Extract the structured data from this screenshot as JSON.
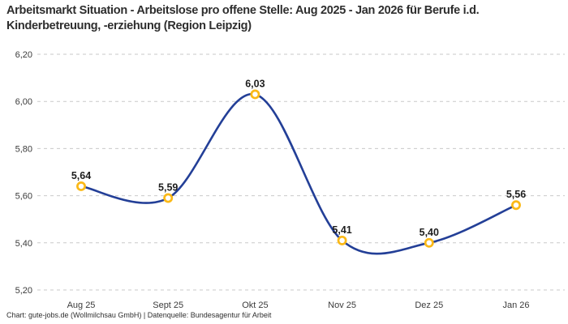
{
  "page": {
    "title": "Arbeitsmarkt Situation - Arbeitslose pro offene Stelle: Aug 2025 - Jan 2026 für Berufe i.d. Kinderbetreuung, -erziehung (Region Leipzig)",
    "footer": "Chart: gute-jobs.de (Wollmilchsau GmbH) | Datenquelle: Bundesagentur für Arbeit"
  },
  "colors": {
    "line": "#233f97",
    "marker_ring": "#fbb917",
    "marker_fill": "#ffffff",
    "gridline": "#c9c9c9",
    "title_text": "#2e2e2e",
    "axis_text": "#3b3b3b",
    "label_text": "#1d1d1d"
  },
  "chart_data": {
    "type": "line",
    "title": "Arbeitsmarkt Situation - Arbeitslose pro offene Stelle: Aug 2025 - Jan 2026 für Berufe i.d. Kinderbetreuung, -erziehung (Region Leipzig)",
    "categories": [
      "Aug 25",
      "Sept 25",
      "Okt 25",
      "Nov 25",
      "Dez 25",
      "Jan 26"
    ],
    "values": [
      5.64,
      5.59,
      6.03,
      5.41,
      5.4,
      5.56
    ],
    "value_labels": [
      "5,64",
      "5,59",
      "6,03",
      "5,41",
      "5,40",
      "5,56"
    ],
    "series_name": "Arbeitslose pro offene Stelle",
    "xlabel": "",
    "ylabel": "",
    "ylim": [
      5.2,
      6.2
    ],
    "y_ticks": [
      6.2,
      6.0,
      5.8,
      5.6,
      5.4,
      5.2
    ],
    "y_tick_labels": [
      "6,20",
      "6,00",
      "5,80",
      "5,60",
      "5,40",
      "5,20"
    ],
    "grid": "horizontal-dashed",
    "legend": "none",
    "smooth": true,
    "attribution": "Chart: gute-jobs.de (Wollmilchsau GmbH) | Datenquelle: Bundesagentur für Arbeit"
  }
}
